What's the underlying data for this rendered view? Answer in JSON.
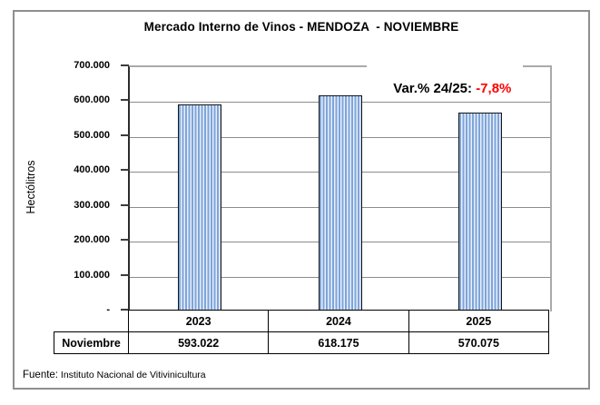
{
  "figure": {
    "title": "Mercado Interno de Vinos - MENDOZA  - NOVIEMBRE",
    "annotation": {
      "label": "Var.% 24/25: ",
      "value": "-7,8%",
      "value_color": "#ff0000"
    },
    "source": {
      "label": "Fuente:",
      "text": " Instituto Nacional de Vitivinicultura"
    }
  },
  "chart_data": {
    "type": "bar",
    "title": "Mercado Interno de Vinos - MENDOZA - NOVIEMBRE",
    "categories": [
      "2023",
      "2024",
      "2025"
    ],
    "values": [
      593022,
      618175,
      570075
    ],
    "value_labels": [
      "593.022",
      "618.175",
      "570.075"
    ],
    "row_label": "Noviembre",
    "xlabel": "",
    "ylabel": "Hectólitros",
    "ylim": [
      0,
      700000
    ],
    "ytick_step": 100000,
    "ytick_labels": [
      "-",
      "100.000",
      "200.000",
      "300.000",
      "400.000",
      "500.000",
      "600.000",
      "700.000"
    ],
    "grid": "horizontal",
    "legend": "none",
    "bar_fill_color": "#7da4da",
    "bar_stripe_color": "#e9eff9",
    "bar_border_color": "#161616",
    "annotation": "Var.% 24/25: -7,8%"
  }
}
